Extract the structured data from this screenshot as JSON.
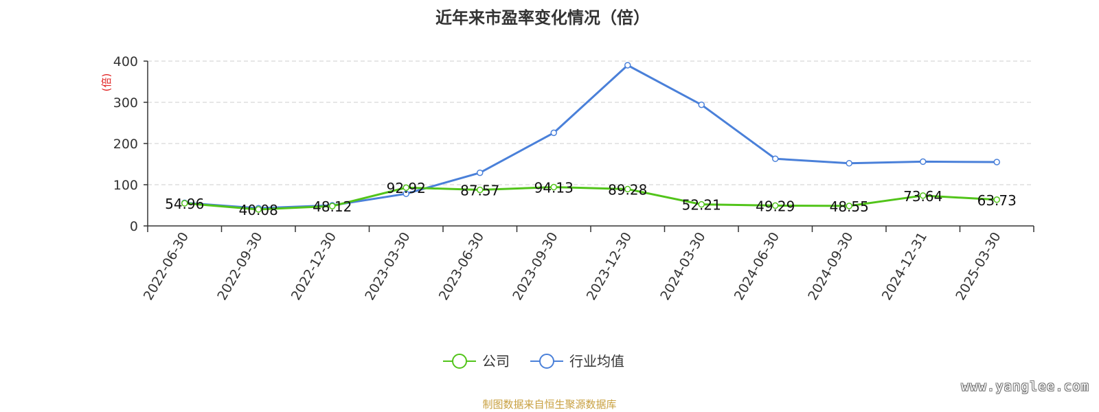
{
  "chart_data": {
    "type": "line",
    "title": "近年来市盈率变化情况（倍）",
    "ylabel": "(倍)",
    "xlabel": "",
    "ylim": [
      0,
      400
    ],
    "yticks": [
      0,
      100,
      200,
      300,
      400
    ],
    "grid": "horizontal dashed",
    "legend_position": "bottom",
    "categories": [
      "2022-06-30",
      "2022-09-30",
      "2022-12-30",
      "2023-03-30",
      "2023-06-30",
      "2023-09-30",
      "2023-12-30",
      "2024-03-30",
      "2024-06-30",
      "2024-09-30",
      "2024-12-31",
      "2025-03-30"
    ],
    "series": [
      {
        "name": "公司",
        "color": "#52c41a",
        "values": [
          54.96,
          40.08,
          48.12,
          92.92,
          87.57,
          94.13,
          89.28,
          52.21,
          49.29,
          48.55,
          73.64,
          63.73
        ],
        "labels": [
          "54.96",
          "40.08",
          "48.12",
          "92.92",
          "87.57",
          "94.13",
          "89.28",
          "52.21",
          "49.29",
          "48.55",
          "73.64",
          "63.73"
        ]
      },
      {
        "name": "行业均值",
        "color": "#4a80d9",
        "values": [
          56,
          43,
          50,
          78,
          129,
          226,
          390,
          294,
          163,
          152,
          156,
          155
        ]
      }
    ]
  },
  "colors": {
    "ylabel": "#e02020",
    "source": "#c8a040"
  },
  "footer": {
    "source": "制图数据来自恒生聚源数据库",
    "watermark": "www.yanglee.com"
  }
}
